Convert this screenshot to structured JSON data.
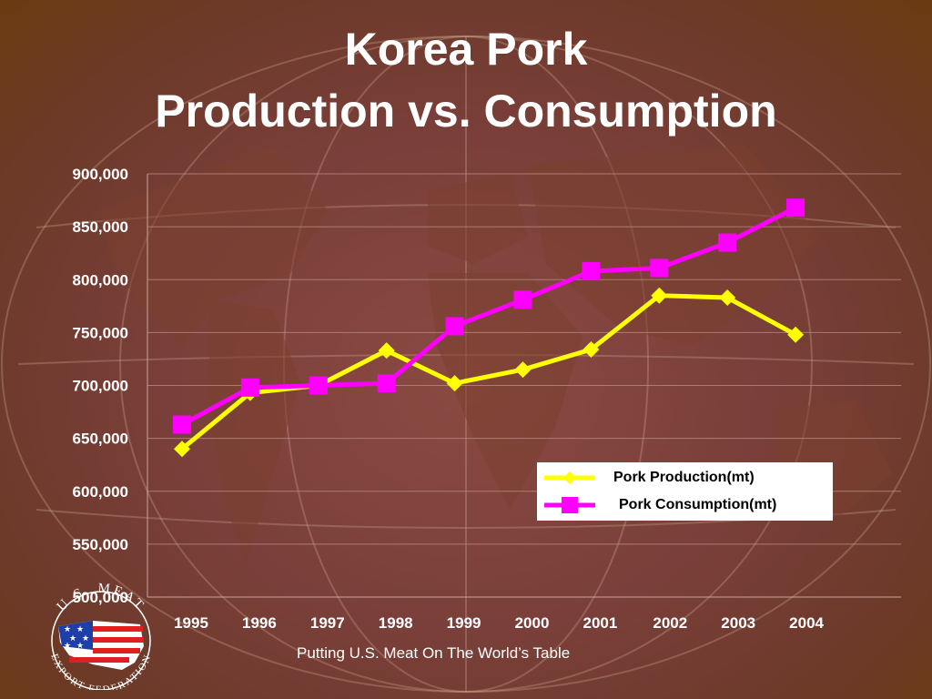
{
  "title_line1": "Korea Pork",
  "title_line2": "Production vs. Consumption",
  "footer": "Putting U.S. Meat On The World’s Table",
  "logo": {
    "top_text": "U.S. MEAT",
    "bottom_text": "EXPORT FEDERATION"
  },
  "colors": {
    "production": "#ffff00",
    "consumption": "#ff00ff",
    "text": "#ffffff"
  },
  "chart_data": {
    "type": "line",
    "title": "Korea Pork Production vs. Consumption",
    "xlabel": "",
    "ylabel": "",
    "categories": [
      "1995",
      "1996",
      "1997",
      "1998",
      "1999",
      "2000",
      "2001",
      "2002",
      "2003",
      "2004"
    ],
    "ylim": [
      500000,
      900000
    ],
    "yticks": [
      "500,000",
      "550,000",
      "600,000",
      "650,000",
      "700,000",
      "750,000",
      "800,000",
      "850,000",
      "900,000"
    ],
    "grid": true,
    "legend_position": "lower-right",
    "series": [
      {
        "name": "Pork Production(mt)",
        "marker": "diamond",
        "values": [
          640000,
          693000,
          700000,
          733000,
          702000,
          715000,
          734000,
          785000,
          783000,
          748000
        ]
      },
      {
        "name": "Pork Consumption(mt)",
        "marker": "square",
        "values": [
          663000,
          698000,
          700000,
          702000,
          756000,
          781000,
          808000,
          811000,
          835000,
          868000
        ]
      }
    ]
  }
}
